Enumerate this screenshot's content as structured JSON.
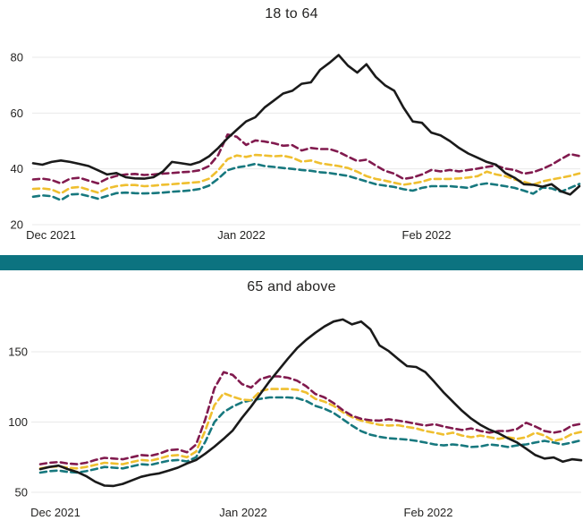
{
  "page": {
    "background": "#ffffff"
  },
  "divider": {
    "color": "#0c7380"
  },
  "colors": {
    "solid_black": "#1a1a1a",
    "dashed_maroon": "#811a4e",
    "dashed_gold": "#efbf2f",
    "dashed_teal": "#17787e",
    "gridline": "#e9e9e9",
    "text": "#252423"
  },
  "chart_data": [
    {
      "type": "line",
      "title": "18 to 64",
      "xlabel": "",
      "ylabel": "",
      "x_tick_labels": [
        "Dec 2021",
        "Jan 2022",
        "Feb 2022"
      ],
      "y_ticks": [
        20,
        40,
        60,
        80
      ],
      "ylim": [
        20,
        85
      ],
      "grid": "horizontal-only",
      "legend": "none",
      "series": [
        {
          "name": "dashed-teal",
          "color": "#17787e",
          "dashed": true,
          "values": [
            30,
            30.5,
            30.2,
            28.8,
            30.8,
            31,
            30.2,
            29.3,
            30.3,
            31.3,
            31.5,
            31.3,
            31.2,
            31.3,
            31.5,
            31.8,
            32,
            32.3,
            32.8,
            34,
            36.5,
            39.5,
            40.5,
            41,
            41.8,
            41,
            40.7,
            40.3,
            40,
            39.6,
            39.3,
            38.8,
            38.5,
            38,
            37.5,
            36.5,
            35.5,
            34.5,
            34,
            33.5,
            32.7,
            32.2,
            33.2,
            33.8,
            33.8,
            33.8,
            33.5,
            33.2,
            34.3,
            34.8,
            34.3,
            33.8,
            33.2,
            32.2,
            31.1,
            33.3,
            33,
            31.8,
            33.2,
            34.6
          ]
        },
        {
          "name": "dashed-gold",
          "color": "#efbf2f",
          "dashed": true,
          "values": [
            32.8,
            33,
            32.6,
            31.2,
            33.2,
            33.5,
            32.5,
            31.5,
            33,
            33.8,
            34.2,
            34.2,
            33.8,
            34,
            34.3,
            34.5,
            34.8,
            35,
            35.3,
            36.5,
            39.5,
            43.5,
            44.8,
            44.3,
            45,
            44.8,
            44.5,
            44.7,
            44,
            42.6,
            43,
            42,
            41.5,
            41,
            40.3,
            39,
            37.4,
            36.4,
            35.8,
            35,
            34.3,
            34.8,
            35.4,
            36.4,
            36.4,
            36.4,
            36.6,
            36.9,
            37.4,
            39,
            38,
            37.4,
            36.2,
            35.4,
            34.3,
            35.5,
            36.2,
            36.8,
            37.5,
            38.4
          ]
        },
        {
          "name": "dashed-maroon",
          "color": "#811a4e",
          "dashed": true,
          "values": [
            36.2,
            36.5,
            36,
            34.8,
            36.5,
            36.8,
            35.8,
            34.8,
            36.5,
            37.5,
            38,
            38.2,
            37.8,
            38,
            38.3,
            38.5,
            38.8,
            39,
            39.5,
            41,
            45,
            52.3,
            51.5,
            48.6,
            50.2,
            49.8,
            49.2,
            48.3,
            48.5,
            46.6,
            47.5,
            47.1,
            47.1,
            46.1,
            44.4,
            42.8,
            43.3,
            41.2,
            39.3,
            38.3,
            36.4,
            36.9,
            38,
            39.6,
            39.1,
            39.6,
            39.1,
            39.6,
            40.1,
            40.7,
            41.2,
            40.1,
            39.6,
            38.3,
            38.8,
            40,
            41.5,
            43.5,
            45.3,
            44.6
          ]
        },
        {
          "name": "solid-black",
          "color": "#1a1a1a",
          "dashed": false,
          "values": [
            42,
            41.5,
            42.5,
            43,
            42.5,
            41.8,
            41,
            39.5,
            38,
            38.5,
            37,
            36.6,
            36.5,
            37,
            39,
            42.5,
            42,
            41.5,
            42.5,
            44.5,
            47.5,
            51,
            54,
            57,
            58.5,
            62,
            64.5,
            67,
            68,
            70.5,
            71,
            75.5,
            78,
            80.8,
            77,
            74.5,
            77.5,
            73,
            70,
            68,
            62,
            57,
            56.5,
            53,
            52,
            50,
            47.5,
            45.5,
            44,
            42.5,
            41.5,
            38.5,
            36.8,
            34.5,
            34.3,
            33.6,
            34.5,
            32,
            30.8,
            33.8
          ]
        }
      ]
    },
    {
      "type": "line",
      "title": "65 and above",
      "xlabel": "",
      "ylabel": "",
      "x_tick_labels": [
        "Dec 2021",
        "Jan 2022",
        "Feb 2022"
      ],
      "y_ticks": [
        50,
        100,
        150
      ],
      "ylim": [
        50,
        178
      ],
      "grid": "horizontal-only",
      "legend": "none",
      "series": [
        {
          "name": "dashed-teal",
          "color": "#17787e",
          "dashed": true,
          "values": [
            64,
            65,
            65.5,
            64.5,
            64,
            65,
            66.5,
            68,
            67.5,
            67,
            68.5,
            70,
            69.5,
            71,
            72.5,
            73,
            72,
            75,
            86,
            100,
            107,
            111,
            114,
            115.5,
            116.5,
            117.5,
            117.5,
            117.5,
            117,
            115,
            111.5,
            109.5,
            106.5,
            102,
            97.5,
            93.5,
            91,
            89.5,
            88.5,
            88,
            87.5,
            86.6,
            85.4,
            84.1,
            83.4,
            84.1,
            83.4,
            82.2,
            82.6,
            84,
            83.4,
            82.2,
            83.4,
            84.1,
            85.4,
            86.6,
            85.4,
            84.1,
            85.4,
            87
          ]
        },
        {
          "name": "dashed-gold",
          "color": "#efbf2f",
          "dashed": true,
          "values": [
            67,
            68,
            68.5,
            67.5,
            67,
            68,
            69.5,
            71,
            70.5,
            70,
            71.5,
            73,
            72.5,
            74,
            76,
            76.5,
            75,
            79,
            94,
            112,
            120.5,
            118,
            116,
            115.5,
            122,
            123.5,
            123.5,
            123.5,
            123,
            121,
            116.5,
            114.5,
            111.5,
            107,
            103.5,
            101,
            99.5,
            98,
            97.5,
            97.8,
            96.5,
            95.5,
            93.6,
            92.4,
            91.1,
            92.4,
            90.4,
            89.2,
            90.4,
            89.2,
            88,
            89.2,
            88,
            89.2,
            92.4,
            90.4,
            86.5,
            88,
            91.5,
            93
          ]
        },
        {
          "name": "dashed-maroon",
          "color": "#811a4e",
          "dashed": true,
          "values": [
            70,
            71,
            71.5,
            70.5,
            70,
            71,
            73,
            74.5,
            74,
            73.5,
            75,
            76.5,
            76,
            77.5,
            80,
            80.5,
            78.5,
            84,
            102,
            124,
            135.5,
            133.5,
            127,
            124.5,
            130.5,
            132.5,
            132.5,
            131.5,
            129.5,
            125.5,
            120,
            117.5,
            113.5,
            108.5,
            104.5,
            102.3,
            101.3,
            101,
            102,
            101,
            100,
            98.7,
            97.5,
            98.5,
            96.8,
            95.5,
            94.3,
            95.5,
            93.6,
            92.4,
            93.6,
            93.6,
            95,
            99.5,
            96.8,
            93.6,
            92.4,
            93.6,
            97.5,
            98.7
          ]
        },
        {
          "name": "solid-black",
          "color": "#1a1a1a",
          "dashed": false,
          "values": [
            66.5,
            68,
            69,
            66.5,
            64.5,
            61.5,
            57.5,
            54.8,
            54.5,
            56,
            58.5,
            61,
            62.5,
            63.5,
            65.5,
            67.5,
            70.5,
            73,
            77.5,
            82.5,
            88,
            94,
            103,
            111,
            120,
            129,
            137,
            145,
            152.5,
            158.5,
            163.5,
            168,
            171.5,
            173,
            169.5,
            171.5,
            166,
            154.5,
            150.5,
            145,
            139.8,
            139.2,
            135.5,
            128.5,
            121,
            114.5,
            108,
            102.5,
            98,
            94.5,
            92,
            88.5,
            85.5,
            81,
            76.5,
            74,
            74.8,
            71.8,
            73.5,
            72.8
          ]
        }
      ]
    }
  ]
}
